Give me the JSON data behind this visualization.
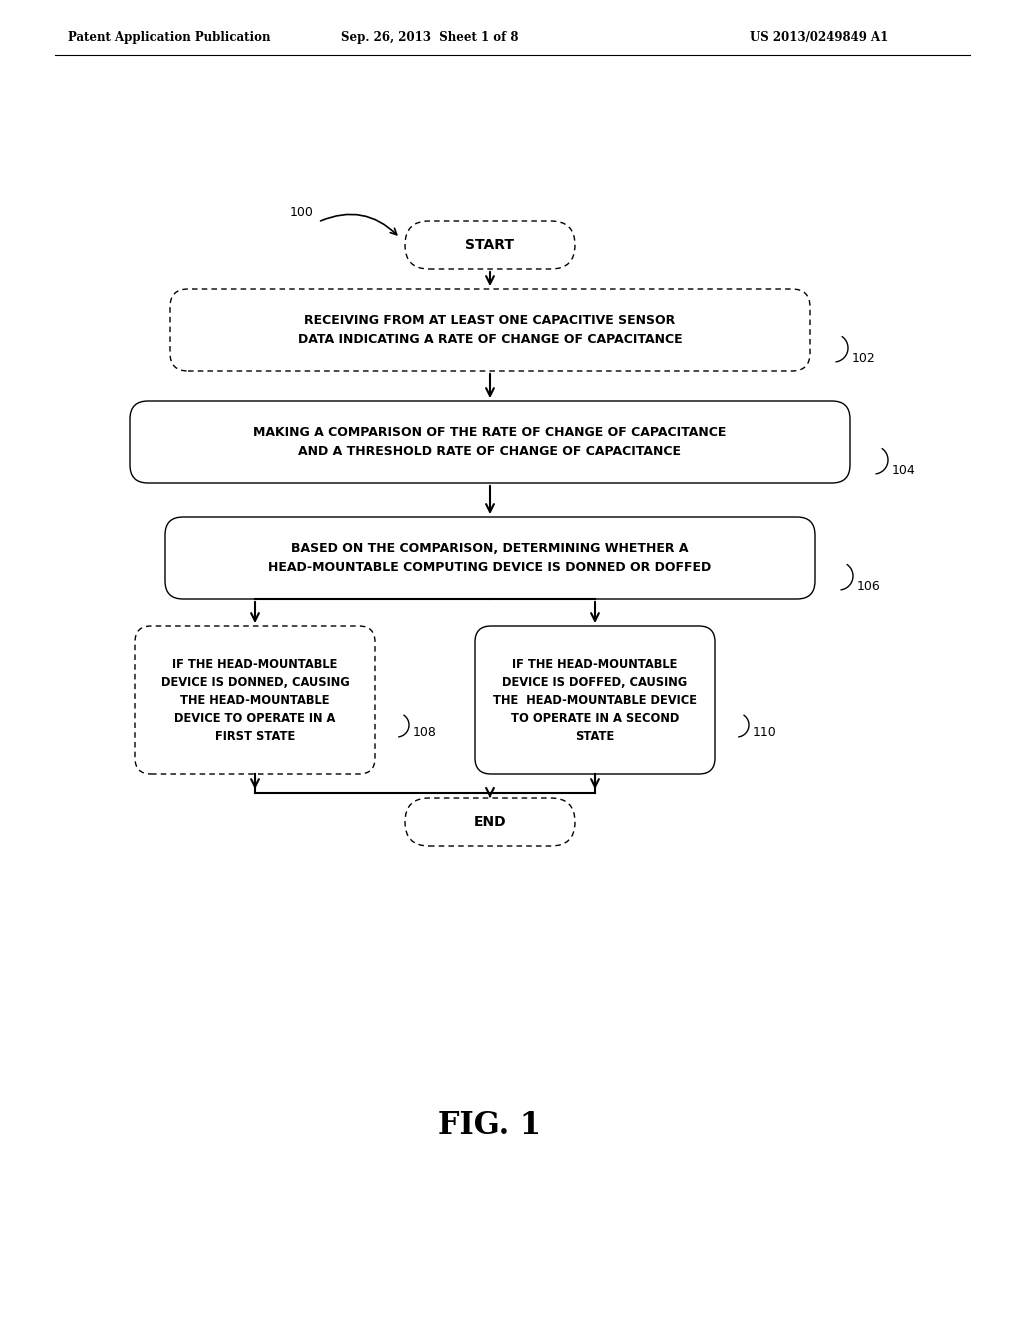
{
  "bg_color": "#ffffff",
  "header_left": "Patent Application Publication",
  "header_mid": "Sep. 26, 2013  Sheet 1 of 8",
  "header_right": "US 2013/0249849 A1",
  "fig_label": "FIG. 1",
  "label_100": "100",
  "label_102": "102",
  "label_104": "104",
  "label_106": "106",
  "label_108": "108",
  "label_110": "110",
  "start_text": "START",
  "end_text": "END",
  "box1_text": "RECEIVING FROM AT LEAST ONE CAPACITIVE SENSOR\nDATA INDICATING A RATE OF CHANGE OF CAPACITANCE",
  "box2_text": "MAKING A COMPARISON OF THE RATE OF CHANGE OF CAPACITANCE\nAND A THRESHOLD RATE OF CHANGE OF CAPACITANCE",
  "box3_text": "BASED ON THE COMPARISON, DETERMINING WHETHER A\nHEAD-MOUNTABLE COMPUTING DEVICE IS DONNED OR DOFFED",
  "box4_text": "IF THE HEAD-MOUNTABLE\nDEVICE IS DONNED, CAUSING\nTHE HEAD-MOUNTABLE\nDEVICE TO OPERATE IN A\nFIRST STATE",
  "box5_text": "IF THE HEAD-MOUNTABLE\nDEVICE IS DOFFED, CAUSING\nTHE  HEAD-MOUNTABLE DEVICE\nTO OPERATE IN A SECOND\nSTATE"
}
